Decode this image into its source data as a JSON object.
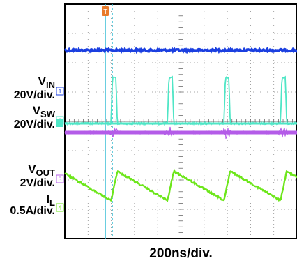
{
  "chart_data": {
    "type": "line",
    "timebase": "200ns/div.",
    "grid": true,
    "channels": [
      {
        "id": "1",
        "name_main": "V",
        "name_sub": "IN",
        "scale": "20V/div.",
        "color": "#1b3fe0"
      },
      {
        "id": "2",
        "name_main": "V",
        "name_sub": "SW",
        "scale": "20V/div.",
        "color": "#4fe6c6"
      },
      {
        "id": "3",
        "name_main": "V",
        "name_sub": "OUT",
        "scale": "2V/div.",
        "color": "#b45ce8"
      },
      {
        "id": "4",
        "name_main": "I",
        "name_sub": "L",
        "scale": "0.5A/div.",
        "color": "#6de61b"
      }
    ],
    "trigger_marker": "T",
    "colors": {
      "background": "#ffffff",
      "frame": "#000000",
      "grid": "#8a8a8a",
      "marker_orange": "#e87a2a",
      "cursor_cyan": "#3fbfd6"
    }
  }
}
